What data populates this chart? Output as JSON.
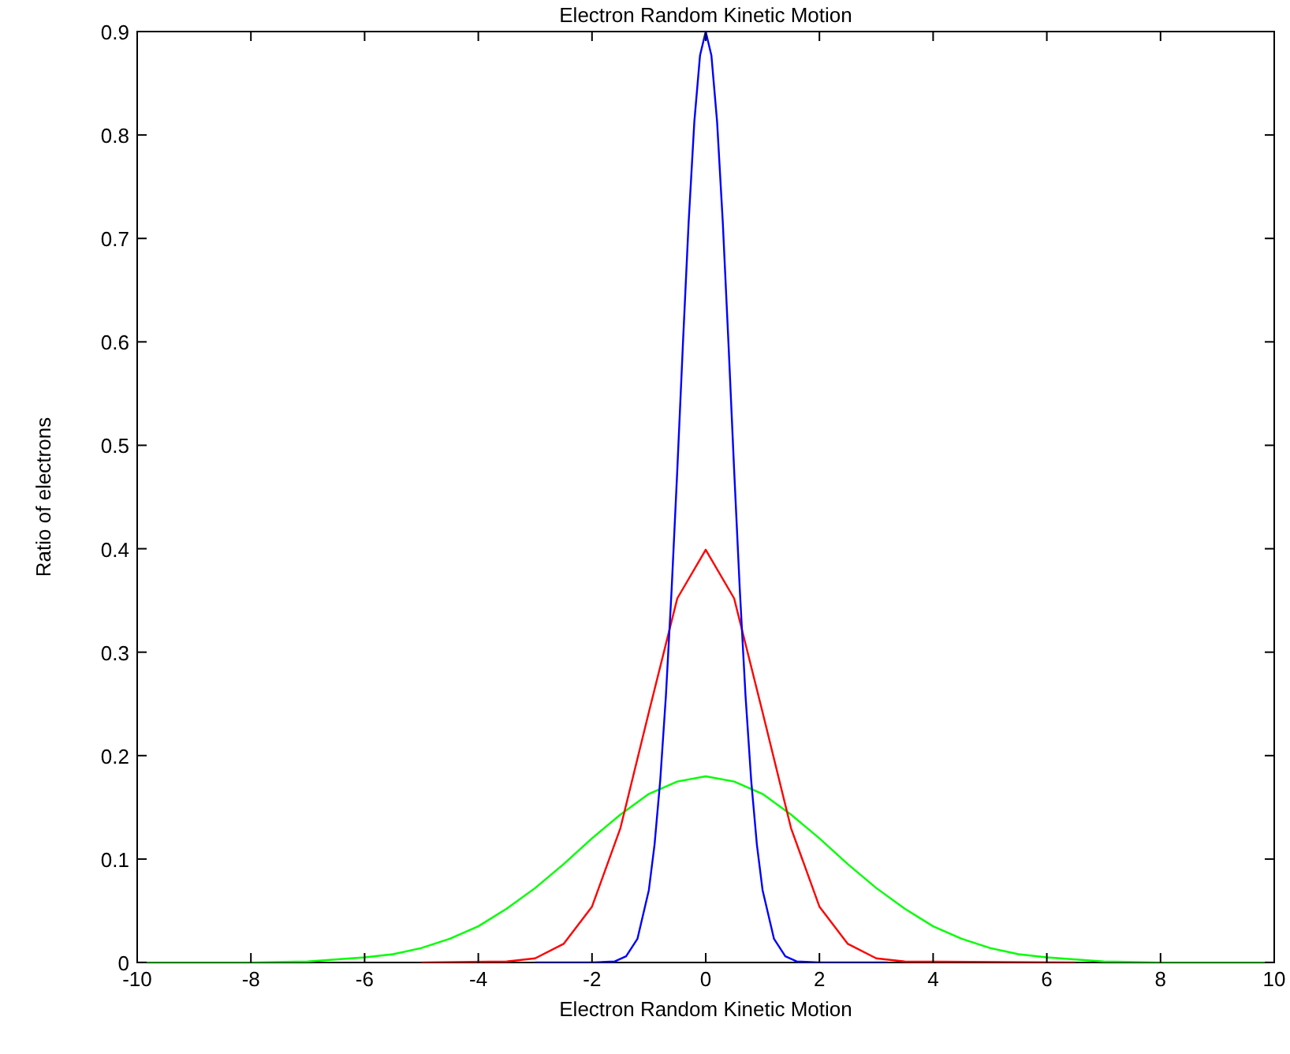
{
  "chart_data": {
    "type": "line",
    "title": "Electron Random Kinetic Motion",
    "xlabel": "Electron Random Kinetic Motion",
    "ylabel": "Ratio of electrons",
    "xlim": [
      -10,
      10
    ],
    "ylim": [
      0,
      0.9
    ],
    "xticks": [
      -10,
      -8,
      -6,
      -4,
      -2,
      0,
      2,
      4,
      6,
      8,
      10
    ],
    "yticks": [
      0,
      0.1,
      0.2,
      0.3,
      0.4,
      0.5,
      0.6,
      0.7,
      0.8,
      0.9
    ],
    "grid": false,
    "marker": "none",
    "line_style": "solid",
    "series": [
      {
        "color": "#00ff00",
        "x": [
          -10,
          -8,
          -7,
          -6,
          -5.5,
          -5,
          -4.5,
          -4,
          -3.5,
          -3,
          -2.5,
          -2,
          -1.5,
          -1,
          -0.5,
          0,
          0.5,
          1,
          1.5,
          2,
          2.5,
          3,
          3.5,
          4,
          4.5,
          5,
          5.5,
          6,
          7,
          8,
          10
        ],
        "values": [
          0,
          0,
          0.001,
          0.005,
          0.008,
          0.014,
          0.023,
          0.035,
          0.052,
          0.072,
          0.095,
          0.12,
          0.143,
          0.163,
          0.175,
          0.18,
          0.175,
          0.163,
          0.143,
          0.12,
          0.095,
          0.072,
          0.052,
          0.035,
          0.023,
          0.014,
          0.008,
          0.005,
          0.001,
          0,
          0
        ]
      },
      {
        "color": "#ff0000",
        "x": [
          -5,
          -3.5,
          -3,
          -2.5,
          -2,
          -1.5,
          -1,
          -0.5,
          0,
          0.5,
          1,
          1.5,
          2,
          2.5,
          3,
          3.5,
          6.5
        ],
        "values": [
          0,
          0.001,
          0.004,
          0.018,
          0.054,
          0.13,
          0.242,
          0.352,
          0.399,
          0.352,
          0.242,
          0.13,
          0.054,
          0.018,
          0.004,
          0.001,
          0
        ]
      },
      {
        "color": "#0000ff",
        "x": [
          -3,
          -2,
          -1.6,
          -1.4,
          -1.2,
          -1,
          -0.9,
          -0.8,
          -0.7,
          -0.6,
          -0.5,
          -0.4,
          -0.3,
          -0.2,
          -0.1,
          0,
          0.1,
          0.2,
          0.3,
          0.4,
          0.5,
          0.6,
          0.7,
          0.8,
          0.9,
          1,
          1.2,
          1.4,
          1.6,
          2,
          3.2
        ],
        "values": [
          0,
          0,
          0.001,
          0.006,
          0.023,
          0.07,
          0.114,
          0.176,
          0.258,
          0.36,
          0.476,
          0.599,
          0.716,
          0.813,
          0.877,
          0.9,
          0.877,
          0.813,
          0.716,
          0.599,
          0.476,
          0.36,
          0.258,
          0.176,
          0.114,
          0.07,
          0.023,
          0.006,
          0.001,
          0,
          0
        ]
      }
    ]
  }
}
